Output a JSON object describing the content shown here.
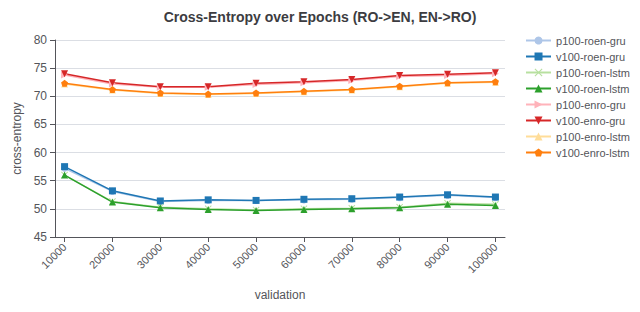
{
  "chart_data": {
    "type": "line",
    "title": "Cross-Entropy over Epochs (RO->EN, EN->RO)",
    "xlabel": "validation",
    "ylabel": "cross-entropy",
    "x": [
      10000,
      20000,
      30000,
      40000,
      50000,
      60000,
      70000,
      80000,
      90000,
      100000
    ],
    "xlim": [
      8000,
      102000
    ],
    "xticks": [
      10000,
      20000,
      30000,
      40000,
      50000,
      60000,
      70000,
      80000,
      90000,
      100000
    ],
    "ylim": [
      45,
      80
    ],
    "yticks": [
      45,
      50,
      55,
      60,
      65,
      70,
      75,
      80
    ],
    "grid": true,
    "legend": "upper right",
    "series": [
      {
        "name": "p100-roen-gru",
        "color": "#aec6e8",
        "marker": "circle",
        "values": [
          57.2,
          53.1,
          51.3,
          51.5,
          51.5,
          51.6,
          51.7,
          52.0,
          52.4,
          52.0
        ]
      },
      {
        "name": "v100-roen-gru",
        "color": "#1f77b4",
        "marker": "square",
        "values": [
          57.5,
          53.2,
          51.4,
          51.6,
          51.5,
          51.7,
          51.8,
          52.1,
          52.5,
          52.1
        ]
      },
      {
        "name": "p100-roen-lstm",
        "color": "#b8e0a0",
        "marker": "x",
        "values": [
          56.0,
          51.3,
          50.3,
          50.0,
          49.8,
          50.0,
          50.1,
          50.3,
          51.0,
          50.8
        ]
      },
      {
        "name": "v100-roen-lstm",
        "color": "#2ca02c",
        "marker": "triangle_up",
        "values": [
          56.0,
          51.2,
          50.2,
          49.9,
          49.7,
          49.9,
          50.0,
          50.2,
          50.8,
          50.6
        ]
      },
      {
        "name": "p100-enro-gru",
        "color": "#ffb3ba",
        "marker": "triangle_right",
        "values": [
          73.8,
          72.2,
          71.6,
          71.6,
          72.1,
          72.4,
          72.8,
          73.5,
          73.7,
          74.0
        ]
      },
      {
        "name": "v100-enro-gru",
        "color": "#d62728",
        "marker": "triangle_down",
        "values": [
          74.0,
          72.4,
          71.7,
          71.7,
          72.3,
          72.6,
          73.0,
          73.7,
          73.9,
          74.2
        ]
      },
      {
        "name": "p100-enro-lstm",
        "color": "#ffdd99",
        "marker": "triangle_up",
        "values": [
          72.2,
          71.1,
          70.5,
          70.3,
          70.5,
          70.8,
          71.1,
          71.7,
          72.3,
          72.5
        ]
      },
      {
        "name": "v100-enro-lstm",
        "color": "#ff7f0e",
        "marker": "pentagon",
        "values": [
          72.3,
          71.2,
          70.6,
          70.4,
          70.6,
          70.9,
          71.2,
          71.8,
          72.4,
          72.6
        ]
      }
    ]
  }
}
